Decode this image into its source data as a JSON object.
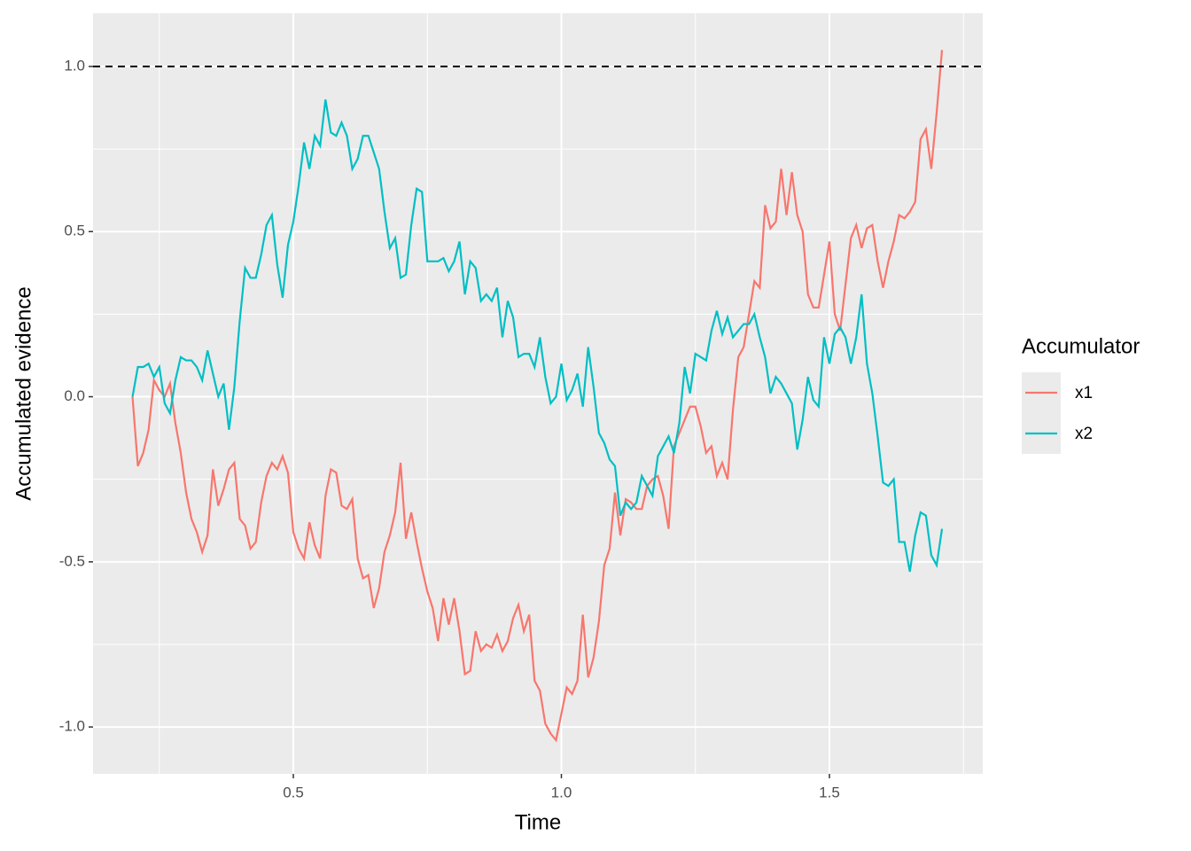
{
  "chart_data": {
    "type": "line",
    "x_label": "Time",
    "y_label": "Accumulated evidence",
    "legend_title": "Accumulator",
    "xlim": [
      0.1264,
      1.786
    ],
    "ylim": [
      -1.142,
      1.161
    ],
    "xticks": [
      0.5,
      {
        "value": 1,
        "label": "1.0"
      },
      1.5
    ],
    "yticks": [
      {
        "value": -1,
        "label": "-1.0"
      },
      -0.5,
      {
        "value": 0,
        "label": "0.0"
      },
      0.5,
      {
        "value": 1,
        "label": "1.0"
      }
    ],
    "xminorticks": [
      0.25,
      0.75,
      1.25,
      1.75
    ],
    "yminorticks": [
      -0.75,
      -0.25,
      0.25,
      0.75
    ],
    "grid": true,
    "hline": {
      "y": 1,
      "color": "#000000",
      "dash": true
    },
    "x": [
      0.2,
      0.21,
      0.22,
      0.23,
      0.24,
      0.25,
      0.26,
      0.27,
      0.28,
      0.29,
      0.3,
      0.31,
      0.32,
      0.33,
      0.34,
      0.35,
      0.36,
      0.37,
      0.38,
      0.39,
      0.4,
      0.41,
      0.42,
      0.43,
      0.44,
      0.45,
      0.46,
      0.47,
      0.48,
      0.49,
      0.5,
      0.51,
      0.52,
      0.53,
      0.54,
      0.55,
      0.56,
      0.57,
      0.58,
      0.59,
      0.6,
      0.61,
      0.62,
      0.63,
      0.64,
      0.65,
      0.66,
      0.67,
      0.68,
      0.69,
      0.7,
      0.71,
      0.72,
      0.73,
      0.74,
      0.75,
      0.76,
      0.77,
      0.78,
      0.79,
      0.8,
      0.81,
      0.82,
      0.83,
      0.84,
      0.85,
      0.86,
      0.87,
      0.88,
      0.89,
      0.9,
      0.91,
      0.92,
      0.93,
      0.94,
      0.95,
      0.96,
      0.97,
      0.98,
      0.99,
      1.0,
      1.01,
      1.02,
      1.03,
      1.04,
      1.05,
      1.06,
      1.07,
      1.08,
      1.09,
      1.1,
      1.11,
      1.12,
      1.13,
      1.14,
      1.15,
      1.16,
      1.17,
      1.18,
      1.19,
      1.2,
      1.21,
      1.22,
      1.23,
      1.24,
      1.25,
      1.26,
      1.27,
      1.28,
      1.29,
      1.3,
      1.31,
      1.32,
      1.33,
      1.34,
      1.35,
      1.36,
      1.37,
      1.38,
      1.39,
      1.4,
      1.41,
      1.42,
      1.43,
      1.44,
      1.45,
      1.46,
      1.47,
      1.48,
      1.49,
      1.5,
      1.51,
      1.52,
      1.53,
      1.54,
      1.55,
      1.56,
      1.57,
      1.58,
      1.59,
      1.6,
      1.61,
      1.62,
      1.63,
      1.64,
      1.65,
      1.66,
      1.67,
      1.68,
      1.69,
      1.7,
      1.71
    ],
    "series": [
      {
        "name": "x1",
        "color": "#F8766D",
        "values": [
          0.0,
          -0.21,
          -0.17,
          -0.1,
          0.05,
          0.02,
          0.0,
          0.04,
          -0.08,
          -0.17,
          -0.29,
          -0.37,
          -0.41,
          -0.47,
          -0.42,
          -0.22,
          -0.33,
          -0.28,
          -0.22,
          -0.2,
          -0.37,
          -0.39,
          -0.46,
          -0.44,
          -0.32,
          -0.24,
          -0.2,
          -0.22,
          -0.18,
          -0.23,
          -0.41,
          -0.46,
          -0.49,
          -0.38,
          -0.45,
          -0.49,
          -0.3,
          -0.22,
          -0.23,
          -0.33,
          -0.34,
          -0.31,
          -0.49,
          -0.55,
          -0.54,
          -0.64,
          -0.58,
          -0.47,
          -0.42,
          -0.35,
          -0.2,
          -0.43,
          -0.35,
          -0.44,
          -0.52,
          -0.59,
          -0.64,
          -0.74,
          -0.61,
          -0.69,
          -0.61,
          -0.71,
          -0.84,
          -0.83,
          -0.71,
          -0.77,
          -0.75,
          -0.76,
          -0.72,
          -0.77,
          -0.74,
          -0.67,
          -0.63,
          -0.71,
          -0.66,
          -0.86,
          -0.89,
          -0.99,
          -1.02,
          -1.04,
          -0.96,
          -0.88,
          -0.9,
          -0.86,
          -0.66,
          -0.85,
          -0.79,
          -0.68,
          -0.51,
          -0.46,
          -0.29,
          -0.42,
          -0.31,
          -0.32,
          -0.34,
          -0.34,
          -0.27,
          -0.25,
          -0.24,
          -0.3,
          -0.4,
          -0.15,
          -0.11,
          -0.07,
          -0.03,
          -0.03,
          -0.09,
          -0.17,
          -0.15,
          -0.24,
          -0.2,
          -0.25,
          -0.04,
          0.12,
          0.15,
          0.25,
          0.35,
          0.33,
          0.58,
          0.51,
          0.53,
          0.69,
          0.55,
          0.68,
          0.55,
          0.5,
          0.31,
          0.27,
          0.27,
          0.37,
          0.47,
          0.25,
          0.2,
          0.34,
          0.48,
          0.52,
          0.45,
          0.51,
          0.52,
          0.41,
          0.33,
          0.41,
          0.47,
          0.55,
          0.54,
          0.56,
          0.59,
          0.78,
          0.81,
          0.69,
          0.86,
          1.05
        ]
      },
      {
        "name": "x2",
        "color": "#00BFC4",
        "values": [
          0.0,
          0.09,
          0.09,
          0.1,
          0.06,
          0.09,
          -0.02,
          -0.05,
          0.05,
          0.12,
          0.11,
          0.11,
          0.09,
          0.05,
          0.14,
          0.07,
          0.0,
          0.04,
          -0.1,
          0.03,
          0.23,
          0.39,
          0.36,
          0.36,
          0.43,
          0.52,
          0.55,
          0.4,
          0.3,
          0.46,
          0.53,
          0.64,
          0.77,
          0.69,
          0.79,
          0.76,
          0.9,
          0.8,
          0.79,
          0.83,
          0.79,
          0.69,
          0.72,
          0.79,
          0.79,
          0.74,
          0.69,
          0.56,
          0.45,
          0.48,
          0.36,
          0.37,
          0.52,
          0.63,
          0.62,
          0.41,
          0.41,
          0.41,
          0.42,
          0.38,
          0.41,
          0.47,
          0.31,
          0.41,
          0.39,
          0.29,
          0.31,
          0.29,
          0.33,
          0.18,
          0.29,
          0.24,
          0.12,
          0.13,
          0.13,
          0.09,
          0.18,
          0.06,
          -0.02,
          0.0,
          0.1,
          -0.01,
          0.02,
          0.07,
          -0.03,
          0.15,
          0.03,
          -0.11,
          -0.14,
          -0.19,
          -0.21,
          -0.36,
          -0.32,
          -0.34,
          -0.32,
          -0.24,
          -0.27,
          -0.3,
          -0.18,
          -0.15,
          -0.12,
          -0.17,
          -0.08,
          0.09,
          0.01,
          0.13,
          0.12,
          0.11,
          0.2,
          0.26,
          0.19,
          0.24,
          0.18,
          0.2,
          0.22,
          0.22,
          0.25,
          0.18,
          0.12,
          0.01,
          0.06,
          0.04,
          0.01,
          -0.02,
          -0.16,
          -0.07,
          0.06,
          -0.01,
          -0.03,
          0.18,
          0.1,
          0.19,
          0.21,
          0.18,
          0.1,
          0.18,
          0.31,
          0.1,
          0.01,
          -0.12,
          -0.26,
          -0.27,
          -0.25,
          -0.44,
          -0.44,
          -0.53,
          -0.42,
          -0.35,
          -0.36,
          -0.48,
          -0.51,
          -0.4
        ]
      }
    ]
  }
}
